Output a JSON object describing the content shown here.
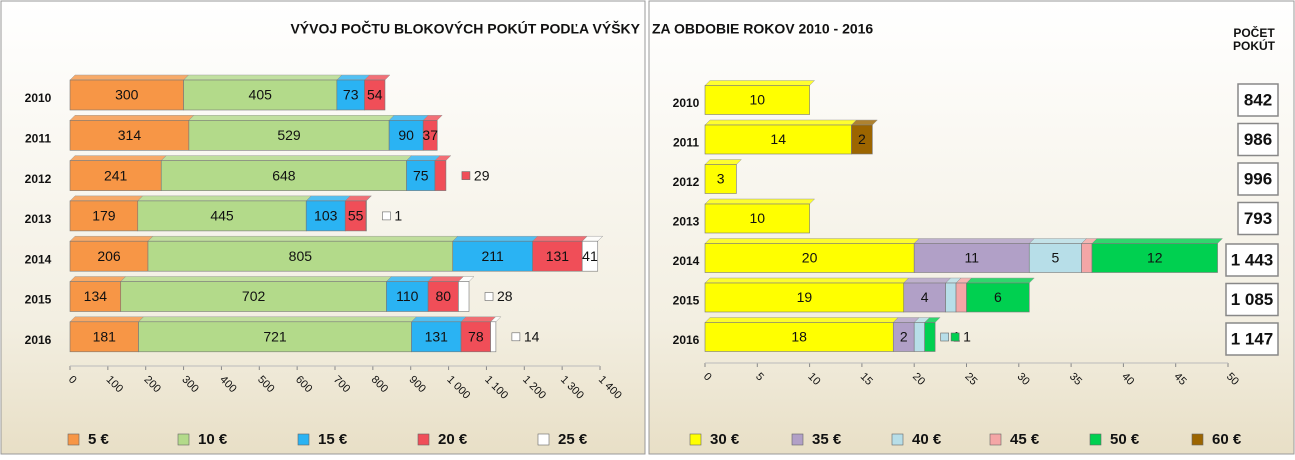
{
  "chart_data": [
    {
      "type": "bar",
      "orientation": "horizontal",
      "stacked": true,
      "title": "VÝVOJ POČTU BLOKOVÝCH POKÚT  PODĽA VÝŠKY",
      "categories": [
        "2010",
        "2011",
        "2012",
        "2013",
        "2014",
        "2015",
        "2016"
      ],
      "series": [
        {
          "name": "5 €",
          "color": "#f79646",
          "values": [
            300,
            314,
            241,
            179,
            206,
            134,
            181
          ]
        },
        {
          "name": "10 €",
          "color": "#b3da8a",
          "values": [
            405,
            529,
            648,
            445,
            805,
            702,
            721
          ]
        },
        {
          "name": "15 €",
          "color": "#2ab3f3",
          "values": [
            73,
            90,
            75,
            103,
            211,
            110,
            131
          ]
        },
        {
          "name": "20 €",
          "color": "#f04e58",
          "values": [
            54,
            37,
            29,
            55,
            131,
            80,
            78
          ]
        },
        {
          "name": "25 €",
          "color": "#ffffff",
          "values": [
            null,
            null,
            null,
            1,
            41,
            28,
            14
          ]
        }
      ],
      "xlim": [
        0,
        1400
      ],
      "xticks": [
        0,
        100,
        200,
        300,
        400,
        500,
        600,
        700,
        800,
        900,
        {
          "value": 1000,
          "label": "1 000"
        },
        {
          "value": 1100,
          "label": "1 100"
        },
        {
          "value": 1200,
          "label": "1 200"
        },
        {
          "value": 1300,
          "label": "1 300"
        },
        {
          "value": 1400,
          "label": "1 400"
        }
      ],
      "legend": "bottom"
    },
    {
      "type": "bar",
      "orientation": "horizontal",
      "stacked": true,
      "title": "ZA OBDOBIE ROKOV 2010 - 2016",
      "categories": [
        "2010",
        "2011",
        "2012",
        "2013",
        "2014",
        "2015",
        "2016"
      ],
      "series": [
        {
          "name": "30 €",
          "color": "#ffff00",
          "values": [
            10,
            14,
            3,
            10,
            20,
            19,
            18
          ]
        },
        {
          "name": "35 €",
          "color": "#b1a0c7",
          "values": [
            null,
            null,
            null,
            null,
            11,
            4,
            2
          ]
        },
        {
          "name": "40 €",
          "color": "#b7dee8",
          "values": [
            null,
            null,
            null,
            null,
            5,
            1,
            1
          ]
        },
        {
          "name": "45 €",
          "color": "#f4a6a6",
          "values": [
            null,
            null,
            null,
            null,
            1,
            1,
            null
          ],
          "value_labels": [
            null,
            null,
            null,
            null,
            null,
            null,
            null
          ]
        },
        {
          "name": "50 €",
          "color": "#00d050",
          "values": [
            null,
            null,
            null,
            null,
            12,
            6,
            1
          ]
        },
        {
          "name": "60 €",
          "color": "#9c6500",
          "values": [
            null,
            2,
            null,
            null,
            null,
            null,
            null
          ]
        }
      ],
      "xlim": [
        0,
        50
      ],
      "xticks": [
        0,
        5,
        10,
        15,
        20,
        25,
        30,
        35,
        40,
        45,
        50
      ],
      "legend": "bottom"
    }
  ],
  "totals": {
    "title_lines": [
      "POČET",
      "POKÚT"
    ],
    "values": [
      842,
      986,
      996,
      793,
      1443,
      1085,
      1147
    ],
    "value_labels": [
      "842",
      "986",
      "996",
      "793",
      "1 443",
      "1 085",
      "1 147"
    ]
  }
}
